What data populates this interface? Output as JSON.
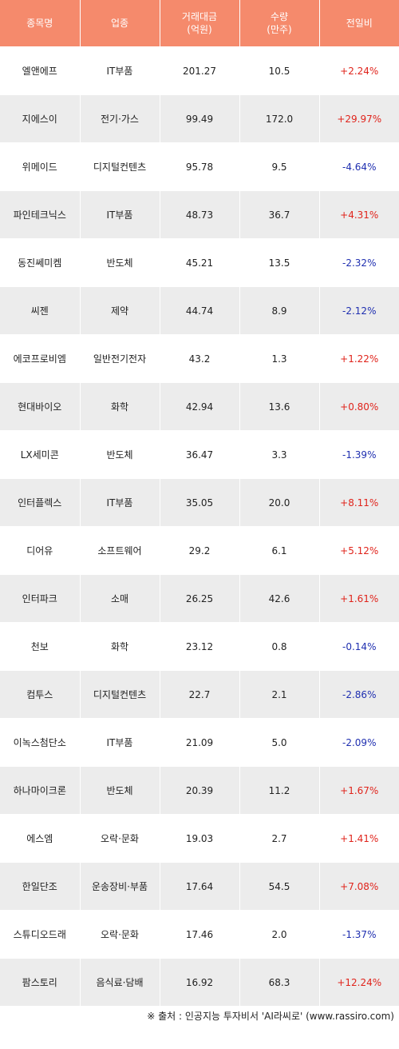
{
  "colors": {
    "header_bg": "#f58a6c",
    "row_alt_bg": "#ececec",
    "up": "#e0241c",
    "down": "#1f2fb0"
  },
  "headers": {
    "name": "종목명",
    "sector": "업종",
    "trade_amount": "거래대금\n(억원)",
    "volume": "수량\n(만주)",
    "change": "전일비"
  },
  "rows": [
    {
      "name": "엘앤에프",
      "sector": "IT부품",
      "amount": "201.27",
      "volume": "10.5",
      "change": "+2.24%",
      "dir": "up"
    },
    {
      "name": "지에스이",
      "sector": "전기·가스",
      "amount": "99.49",
      "volume": "172.0",
      "change": "+29.97%",
      "dir": "up"
    },
    {
      "name": "위메이드",
      "sector": "디지털컨텐츠",
      "amount": "95.78",
      "volume": "9.5",
      "change": "-4.64%",
      "dir": "down"
    },
    {
      "name": "파인테크닉스",
      "sector": "IT부품",
      "amount": "48.73",
      "volume": "36.7",
      "change": "+4.31%",
      "dir": "up"
    },
    {
      "name": "동진쎄미켐",
      "sector": "반도체",
      "amount": "45.21",
      "volume": "13.5",
      "change": "-2.32%",
      "dir": "down"
    },
    {
      "name": "씨젠",
      "sector": "제약",
      "amount": "44.74",
      "volume": "8.9",
      "change": "-2.12%",
      "dir": "down"
    },
    {
      "name": "에코프로비엠",
      "sector": "일반전기전자",
      "amount": "43.2",
      "volume": "1.3",
      "change": "+1.22%",
      "dir": "up"
    },
    {
      "name": "현대바이오",
      "sector": "화학",
      "amount": "42.94",
      "volume": "13.6",
      "change": "+0.80%",
      "dir": "up"
    },
    {
      "name": "LX세미콘",
      "sector": "반도체",
      "amount": "36.47",
      "volume": "3.3",
      "change": "-1.39%",
      "dir": "down"
    },
    {
      "name": "인터플렉스",
      "sector": "IT부품",
      "amount": "35.05",
      "volume": "20.0",
      "change": "+8.11%",
      "dir": "up"
    },
    {
      "name": "디어유",
      "sector": "소프트웨어",
      "amount": "29.2",
      "volume": "6.1",
      "change": "+5.12%",
      "dir": "up"
    },
    {
      "name": "인터파크",
      "sector": "소매",
      "amount": "26.25",
      "volume": "42.6",
      "change": "+1.61%",
      "dir": "up"
    },
    {
      "name": "천보",
      "sector": "화학",
      "amount": "23.12",
      "volume": "0.8",
      "change": "-0.14%",
      "dir": "down"
    },
    {
      "name": "컴투스",
      "sector": "디지털컨텐츠",
      "amount": "22.7",
      "volume": "2.1",
      "change": "-2.86%",
      "dir": "down"
    },
    {
      "name": "이녹스첨단소",
      "sector": "IT부품",
      "amount": "21.09",
      "volume": "5.0",
      "change": "-2.09%",
      "dir": "down"
    },
    {
      "name": "하나마이크론",
      "sector": "반도체",
      "amount": "20.39",
      "volume": "11.2",
      "change": "+1.67%",
      "dir": "up"
    },
    {
      "name": "에스엠",
      "sector": "오락·문화",
      "amount": "19.03",
      "volume": "2.7",
      "change": "+1.41%",
      "dir": "up"
    },
    {
      "name": "한일단조",
      "sector": "운송장비·부품",
      "amount": "17.64",
      "volume": "54.5",
      "change": "+7.08%",
      "dir": "up"
    },
    {
      "name": "스튜디오드래",
      "sector": "오락·문화",
      "amount": "17.46",
      "volume": "2.0",
      "change": "-1.37%",
      "dir": "down"
    },
    {
      "name": "팜스토리",
      "sector": "음식료·담배",
      "amount": "16.92",
      "volume": "68.3",
      "change": "+12.24%",
      "dir": "up"
    }
  ],
  "source_note": "※ 출처 : 인공지능 투자비서 'AI라씨로' (www.rassiro.com)"
}
